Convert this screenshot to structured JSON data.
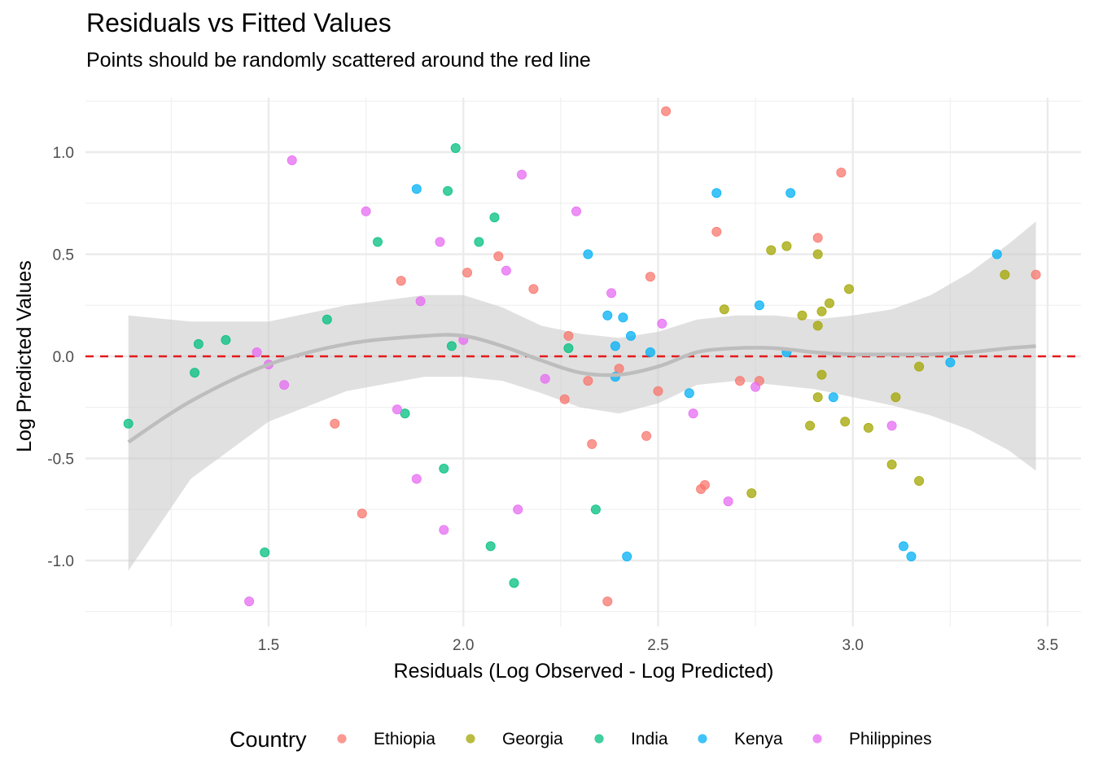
{
  "chart_data": {
    "type": "scatter",
    "title": "Residuals vs Fitted Values",
    "subtitle": "Points should be randomly scattered around the red line",
    "xlabel": "Residuals (Log Observed - Log Predicted)",
    "ylabel": "Log Predicted Values",
    "xlim": [
      1.1,
      3.6
    ],
    "ylim": [
      -1.26,
      1.26
    ],
    "x_ticks": [
      1.5,
      2.0,
      2.5,
      3.0,
      3.5
    ],
    "x_tick_labels": [
      "1.5",
      "2.0",
      "2.5",
      "3.0",
      "3.5"
    ],
    "y_ticks": [
      -1.0,
      -0.5,
      0.0,
      0.5,
      1.0
    ],
    "y_tick_labels": [
      "-1.0",
      "-0.5",
      "0.0",
      "0.5",
      "1.0"
    ],
    "grid": true,
    "reference_line": {
      "y": 0,
      "style": "dashed",
      "color": "#e41a1c"
    },
    "legend": {
      "title": "Country",
      "position": "bottom"
    },
    "series": [
      {
        "name": "Ethiopia",
        "color": "#F8766D",
        "points": [
          [
            2.52,
            1.2
          ],
          [
            2.97,
            0.9
          ],
          [
            2.65,
            0.61
          ],
          [
            2.91,
            0.58
          ],
          [
            2.09,
            0.49
          ],
          [
            2.01,
            0.41
          ],
          [
            1.84,
            0.37
          ],
          [
            2.18,
            0.33
          ],
          [
            2.48,
            0.39
          ],
          [
            3.47,
            0.4
          ],
          [
            2.27,
            0.1
          ],
          [
            2.4,
            -0.06
          ],
          [
            2.32,
            -0.12
          ],
          [
            2.71,
            -0.12
          ],
          [
            2.76,
            -0.12
          ],
          [
            2.26,
            -0.21
          ],
          [
            2.5,
            -0.17
          ],
          [
            1.67,
            -0.33
          ],
          [
            2.33,
            -0.43
          ],
          [
            2.47,
            -0.39
          ],
          [
            2.62,
            -0.63
          ],
          [
            2.61,
            -0.65
          ],
          [
            1.74,
            -0.77
          ],
          [
            2.37,
            -1.2
          ]
        ]
      },
      {
        "name": "Georgia",
        "color": "#A3A500",
        "points": [
          [
            2.79,
            0.52
          ],
          [
            2.83,
            0.54
          ],
          [
            2.91,
            0.5
          ],
          [
            2.67,
            0.23
          ],
          [
            2.94,
            0.26
          ],
          [
            2.99,
            0.33
          ],
          [
            2.87,
            0.2
          ],
          [
            2.92,
            0.22
          ],
          [
            2.91,
            0.15
          ],
          [
            3.39,
            0.4
          ],
          [
            3.17,
            -0.05
          ],
          [
            2.92,
            -0.09
          ],
          [
            2.91,
            -0.2
          ],
          [
            3.11,
            -0.2
          ],
          [
            2.98,
            -0.32
          ],
          [
            2.89,
            -0.34
          ],
          [
            3.04,
            -0.35
          ],
          [
            3.1,
            -0.53
          ],
          [
            3.17,
            -0.61
          ],
          [
            2.74,
            -0.67
          ]
        ]
      },
      {
        "name": "India",
        "color": "#00BF7D",
        "points": [
          [
            1.98,
            1.02
          ],
          [
            1.96,
            0.81
          ],
          [
            2.08,
            0.68
          ],
          [
            2.04,
            0.56
          ],
          [
            1.78,
            0.56
          ],
          [
            1.65,
            0.18
          ],
          [
            1.39,
            0.08
          ],
          [
            1.32,
            0.06
          ],
          [
            2.27,
            0.04
          ],
          [
            1.97,
            0.05
          ],
          [
            1.31,
            -0.08
          ],
          [
            1.14,
            -0.33
          ],
          [
            1.85,
            -0.28
          ],
          [
            1.95,
            -0.55
          ],
          [
            2.34,
            -0.75
          ],
          [
            2.07,
            -0.93
          ],
          [
            1.49,
            -0.96
          ],
          [
            2.13,
            -1.11
          ]
        ]
      },
      {
        "name": "Kenya",
        "color": "#00B0F6",
        "points": [
          [
            1.88,
            0.82
          ],
          [
            2.65,
            0.8
          ],
          [
            2.84,
            0.8
          ],
          [
            2.32,
            0.5
          ],
          [
            2.76,
            0.25
          ],
          [
            2.37,
            0.2
          ],
          [
            2.41,
            0.19
          ],
          [
            2.43,
            0.1
          ],
          [
            2.39,
            0.05
          ],
          [
            2.48,
            0.02
          ],
          [
            2.83,
            0.02
          ],
          [
            2.39,
            -0.1
          ],
          [
            3.25,
            -0.03
          ],
          [
            2.58,
            -0.18
          ],
          [
            2.95,
            -0.2
          ],
          [
            3.37,
            0.5
          ],
          [
            2.42,
            -0.98
          ],
          [
            3.13,
            -0.93
          ],
          [
            3.15,
            -0.98
          ]
        ]
      },
      {
        "name": "Philippines",
        "color": "#E76BF3",
        "points": [
          [
            1.56,
            0.96
          ],
          [
            2.15,
            0.89
          ],
          [
            1.75,
            0.71
          ],
          [
            2.29,
            0.71
          ],
          [
            1.94,
            0.56
          ],
          [
            2.11,
            0.42
          ],
          [
            2.38,
            0.31
          ],
          [
            1.89,
            0.27
          ],
          [
            2.51,
            0.16
          ],
          [
            2.0,
            0.08
          ],
          [
            1.47,
            0.02
          ],
          [
            1.5,
            -0.04
          ],
          [
            1.54,
            -0.14
          ],
          [
            2.21,
            -0.11
          ],
          [
            2.75,
            -0.15
          ],
          [
            1.83,
            -0.26
          ],
          [
            2.59,
            -0.28
          ],
          [
            3.1,
            -0.34
          ],
          [
            1.88,
            -0.6
          ],
          [
            2.14,
            -0.75
          ],
          [
            1.95,
            -0.85
          ],
          [
            2.68,
            -0.71
          ],
          [
            1.45,
            -1.2
          ]
        ]
      }
    ],
    "smooth": {
      "method": "loess",
      "color": "#bdbdbd",
      "x": [
        1.14,
        1.3,
        1.5,
        1.7,
        1.9,
        2.0,
        2.1,
        2.2,
        2.3,
        2.4,
        2.5,
        2.6,
        2.7,
        2.8,
        2.9,
        3.0,
        3.1,
        3.2,
        3.3,
        3.4,
        3.47
      ],
      "y": [
        -0.42,
        -0.22,
        -0.04,
        0.06,
        0.1,
        0.1,
        0.05,
        -0.02,
        -0.08,
        -0.09,
        -0.05,
        0.02,
        0.04,
        0.04,
        0.02,
        0.01,
        0.01,
        0.01,
        0.02,
        0.04,
        0.05
      ],
      "lower": [
        -1.05,
        -0.6,
        -0.32,
        -0.17,
        -0.1,
        -0.1,
        -0.12,
        -0.18,
        -0.25,
        -0.28,
        -0.23,
        -0.14,
        -0.12,
        -0.14,
        -0.16,
        -0.2,
        -0.24,
        -0.29,
        -0.36,
        -0.46,
        -0.56
      ],
      "upper": [
        0.2,
        0.17,
        0.17,
        0.25,
        0.3,
        0.3,
        0.24,
        0.15,
        0.11,
        0.09,
        0.12,
        0.18,
        0.2,
        0.2,
        0.18,
        0.2,
        0.23,
        0.3,
        0.41,
        0.55,
        0.66
      ]
    }
  }
}
